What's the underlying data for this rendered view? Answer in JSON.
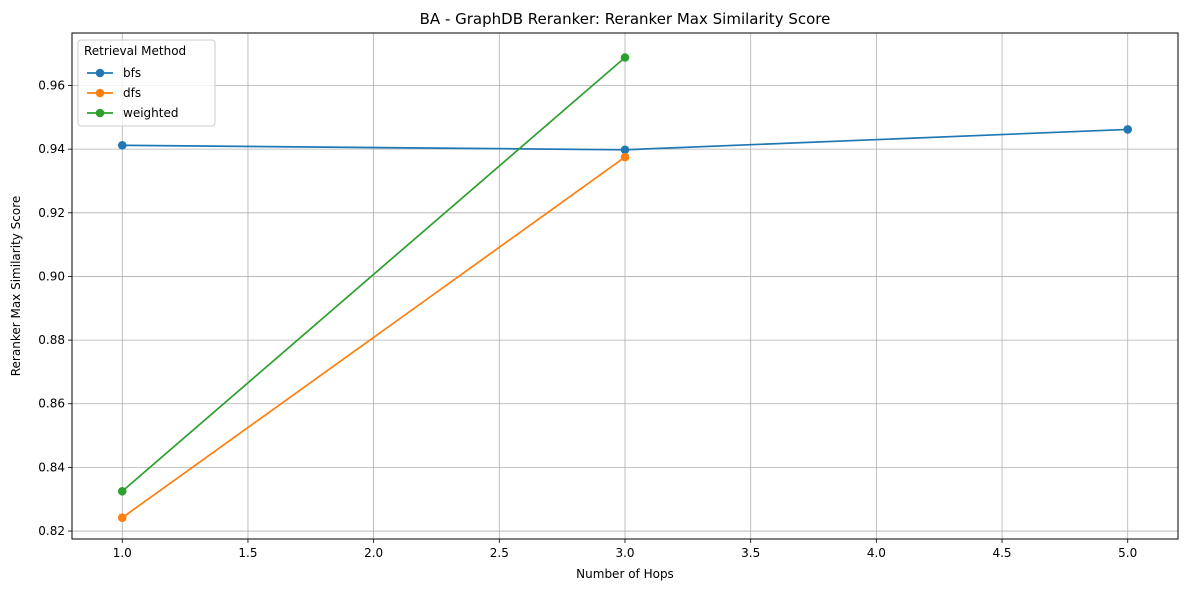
{
  "chart_data": {
    "type": "line",
    "title": "BA - GraphDB Reranker: Reranker Max Similarity Score",
    "xlabel": "Number of Hops",
    "ylabel": "Reranker Max Similarity Score",
    "xlim": [
      0.8,
      5.2
    ],
    "ylim": [
      0.8175,
      0.9765
    ],
    "xticks": [
      1.0,
      1.5,
      2.0,
      2.5,
      3.0,
      3.5,
      4.0,
      4.5,
      5.0
    ],
    "xtick_labels": [
      "1.0",
      "1.5",
      "2.0",
      "2.5",
      "3.0",
      "3.5",
      "4.0",
      "4.5",
      "5.0"
    ],
    "yticks": [
      0.82,
      0.84,
      0.86,
      0.88,
      0.9,
      0.92,
      0.94,
      0.96
    ],
    "ytick_labels": [
      "0.82",
      "0.84",
      "0.86",
      "0.88",
      "0.90",
      "0.92",
      "0.94",
      "0.96"
    ],
    "grid": true,
    "legend": {
      "title": "Retrieval Method",
      "placement": "upper-left"
    },
    "series": [
      {
        "name": "bfs",
        "color": "#1f77b4",
        "x": [
          1,
          3,
          5
        ],
        "y": [
          0.9412,
          0.9398,
          0.9462
        ]
      },
      {
        "name": "dfs",
        "color": "#ff7f0e",
        "x": [
          1,
          3
        ],
        "y": [
          0.8242,
          0.9375
        ]
      },
      {
        "name": "weighted",
        "color": "#2ca02c",
        "x": [
          1,
          3
        ],
        "y": [
          0.8325,
          0.9688
        ]
      }
    ]
  }
}
